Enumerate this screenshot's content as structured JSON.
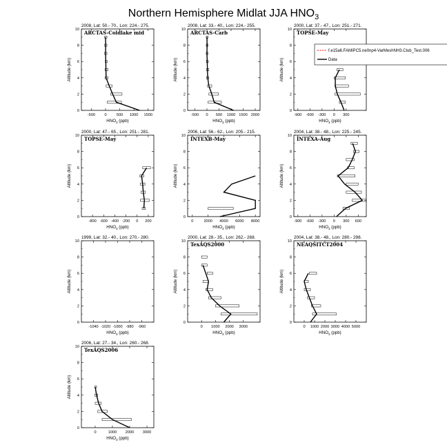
{
  "page_title": "Northern Hemisphere Midlat JJA HNO",
  "page_title_sub": "3",
  "ylabel": "Altitude (km)",
  "xlabel_pre": "HNO",
  "xlabel_sub": "3",
  "xlabel_post": " (ppb)",
  "legend": {
    "model": "f.e15a6.FAMIPC5.ne0np4-VarMeshNH3.Club_Test.006",
    "data": "Data",
    "model_color": "#ff0000"
  },
  "chart_data": [
    {
      "type": "line",
      "header": "2008, Lat: 50.- 70., Lon: 224.- 275.",
      "label": "ARCTAS-Coldlake mid",
      "xlim": [
        -850,
        1700
      ],
      "ylim": [
        0,
        10
      ],
      "xticks": [
        -500,
        0,
        500,
        1000,
        1500
      ],
      "yticks": [
        0,
        2,
        4,
        6,
        8,
        10
      ],
      "profile": [
        [
          1200,
          0
        ],
        [
          380,
          1
        ],
        [
          250,
          2
        ],
        [
          130,
          3
        ],
        [
          20,
          4
        ],
        [
          15,
          5
        ],
        [
          10,
          6
        ],
        [
          0,
          7
        ],
        [
          5,
          8
        ],
        [
          0,
          9
        ]
      ],
      "boxes": [
        [
          60,
          560
        ],
        [
          180,
          580
        ],
        [
          20,
          230
        ],
        [
          -20,
          90
        ],
        [
          -20,
          90
        ],
        [
          -10,
          60
        ],
        [
          -30,
          50
        ],
        [
          -30,
          50
        ],
        [
          -30,
          50
        ]
      ]
    },
    {
      "type": "line",
      "header": "2008, Lat: 33.- 40., Lon: 224.- 255.",
      "label": "ARCTAS-Carb",
      "xlim": [
        -800,
        2200
      ],
      "ylim": [
        0,
        10
      ],
      "xticks": [
        -500,
        0,
        500,
        1000,
        1500,
        2000
      ],
      "yticks": [
        0,
        2,
        4,
        6,
        8,
        10
      ],
      "profile": [
        [
          1100,
          0
        ],
        [
          300,
          1
        ],
        [
          200,
          2
        ],
        [
          80,
          3
        ],
        [
          30,
          4
        ],
        [
          20,
          5
        ],
        [
          10,
          6
        ],
        [
          0,
          7
        ],
        [
          5,
          8
        ],
        [
          0,
          9
        ]
      ],
      "boxes": [
        [
          50,
          600
        ],
        [
          80,
          480
        ],
        [
          20,
          200
        ],
        [
          -20,
          80
        ],
        [
          -20,
          80
        ],
        [
          -20,
          60
        ],
        [
          -30,
          50
        ],
        [
          -30,
          50
        ],
        [
          -30,
          50
        ]
      ]
    },
    {
      "type": "line",
      "header": "2000, Lat: 37.- 47., Lon: 251.- 271.",
      "label": "TOPSE-May",
      "xlim": [
        -1000,
        800
      ],
      "ylim": [
        0,
        10
      ],
      "xticks": [
        -900,
        -600,
        -300,
        0,
        300
      ],
      "yticks": [
        0,
        2,
        4,
        6,
        8,
        10
      ],
      "profile": [
        [
          250,
          0
        ],
        [
          170,
          1
        ],
        [
          80,
          2
        ],
        [
          30,
          3
        ],
        [
          30,
          4
        ],
        [
          130,
          5
        ]
      ],
      "boxes": [
        [
          130,
          280
        ],
        [
          20,
          650
        ],
        [
          20,
          360
        ],
        [
          0,
          280
        ],
        [
          70,
          220
        ]
      ]
    },
    {
      "type": "line",
      "header": "2000, Lat: 47.- 65., Lon: 251.- 281.",
      "label": "TOPSE-May",
      "xlim": [
        -1000,
        300
      ],
      "ylim": [
        0,
        10
      ],
      "xticks": [
        -800,
        -600,
        -400,
        -200,
        0,
        200
      ],
      "yticks": [
        0,
        2,
        4,
        6,
        8,
        10
      ],
      "profile": [
        [
          120,
          1
        ],
        [
          130,
          2
        ],
        [
          110,
          3
        ],
        [
          100,
          4
        ],
        [
          80,
          5
        ],
        [
          170,
          6
        ]
      ],
      "boxes": [
        [
          90,
          150
        ],
        [
          60,
          220
        ],
        [
          70,
          150
        ],
        [
          60,
          140
        ],
        [
          50,
          120
        ],
        [
          100,
          240
        ]
      ]
    },
    {
      "type": "line",
      "header": "2006, Lat: 56.- 62., Lon: 205.- 215.",
      "label": "INTEXB-May",
      "xlim": [
        -600,
        8600
      ],
      "ylim": [
        0,
        10
      ],
      "xticks": [
        0,
        2000,
        4000,
        6000,
        8000
      ],
      "yticks": [
        0,
        2,
        4,
        6,
        8,
        10
      ],
      "profile": [
        [
          3500,
          0
        ],
        [
          8000,
          1
        ],
        [
          8000,
          2
        ],
        [
          4000,
          3
        ],
        [
          5000,
          4
        ],
        [
          8000,
          5
        ]
      ],
      "boxes": [
        [
          2000,
          5200
        ]
      ]
    },
    {
      "type": "line",
      "header": "2004, Lat: 38.- 48., Lon: 225.- 245.",
      "label": "INTEXA-Aug",
      "xlim": [
        -1000,
        800
      ],
      "ylim": [
        0,
        10
      ],
      "xticks": [
        -900,
        -600,
        -300,
        0,
        300,
        600
      ],
      "yticks": [
        0,
        2,
        4,
        6,
        8,
        10
      ],
      "profile": [
        [
          60,
          0
        ],
        [
          280,
          1
        ],
        [
          700,
          2
        ],
        [
          520,
          3
        ],
        [
          260,
          4
        ],
        [
          100,
          5
        ],
        [
          350,
          6
        ],
        [
          450,
          7
        ],
        [
          530,
          8
        ],
        [
          460,
          9
        ]
      ],
      "boxes": [
        [
          220,
          380
        ],
        [
          450,
          800
        ],
        [
          300,
          680
        ],
        [
          300,
          600
        ],
        [
          80,
          520
        ],
        [
          330,
          500
        ],
        [
          300,
          500
        ],
        [
          480,
          620
        ],
        [
          420,
          580
        ]
      ]
    },
    {
      "type": "line",
      "header": "1999, Lat: 32.- 40., Lon: 270.- 280.",
      "label": "",
      "xlim": [
        -1060,
        -940
      ],
      "ylim": [
        0,
        10
      ],
      "xticks": [
        -1040,
        -1020,
        -1000,
        -980,
        -960
      ],
      "yticks": [
        0,
        2,
        4,
        6,
        8,
        10
      ],
      "profile": [],
      "boxes": []
    },
    {
      "type": "line",
      "header": "2000, Lat: 28.- 35., Lon: 262.- 268.",
      "label": "TexAQS2000",
      "xlim": [
        -1000,
        4200
      ],
      "ylim": [
        0,
        10
      ],
      "xticks": [
        0,
        1000,
        2000,
        3000
      ],
      "yticks": [
        0,
        2,
        4,
        6,
        8,
        10
      ],
      "profile": [
        [
          1600,
          0
        ],
        [
          2100,
          1
        ],
        [
          1300,
          2
        ],
        [
          700,
          3
        ],
        [
          400,
          4
        ],
        [
          500,
          5
        ],
        [
          300,
          6
        ],
        [
          100,
          7
        ]
      ],
      "boxes": [
        [
          1400,
          4000
        ],
        [
          1000,
          2700
        ],
        [
          500,
          1400
        ],
        [
          300,
          800
        ],
        [
          100,
          500
        ],
        [
          400,
          800
        ],
        [
          0,
          400
        ],
        [
          0,
          400
        ]
      ]
    },
    {
      "type": "line",
      "header": "2004, Lat: 38.- 48., Lon: 280.- 298.",
      "label": "NEAQSITCT2004",
      "xlim": [
        -1000,
        6000
      ],
      "ylim": [
        0,
        10
      ],
      "xticks": [
        0,
        1000,
        2000,
        3000,
        4000,
        5000
      ],
      "yticks": [
        0,
        2,
        4,
        6,
        8,
        10
      ],
      "profile": [
        [
          600,
          0
        ],
        [
          1200,
          1
        ],
        [
          800,
          2
        ],
        [
          500,
          3
        ],
        [
          200,
          4
        ],
        [
          0,
          5
        ],
        [
          400,
          6
        ]
      ],
      "boxes": [
        [
          800,
          3100
        ],
        [
          700,
          1600
        ],
        [
          300,
          1000
        ],
        [
          0,
          600
        ],
        [
          0,
          400
        ],
        [
          500,
          1200
        ]
      ]
    },
    {
      "type": "line",
      "header": "2006, Lat: 27.- 34., Lon: 260.- 268.",
      "label": "TexAQS2006",
      "xlim": [
        -800,
        3400
      ],
      "ylim": [
        0,
        10
      ],
      "xticks": [
        0,
        1000,
        2000,
        3000
      ],
      "yticks": [
        0,
        2,
        4,
        6,
        8,
        10
      ],
      "profile": [
        [
          2000,
          0
        ],
        [
          1000,
          1
        ],
        [
          400,
          2
        ],
        [
          200,
          3
        ],
        [
          80,
          4
        ],
        [
          0,
          5
        ]
      ],
      "boxes": [
        [
          400,
          2100
        ],
        [
          150,
          700
        ],
        [
          0,
          350
        ],
        [
          -20,
          150
        ],
        [
          -20,
          80
        ]
      ]
    }
  ]
}
